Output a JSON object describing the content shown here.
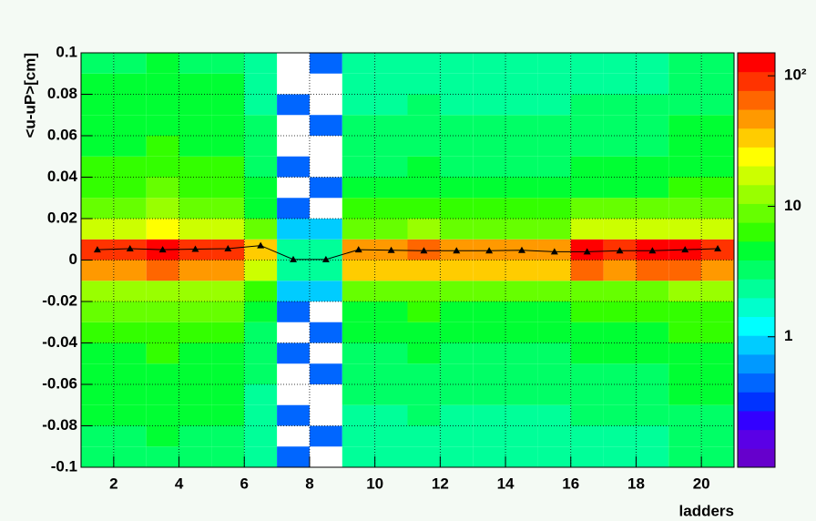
{
  "chart_data": {
    "type": "heatmap",
    "xlabel": "ladders",
    "ylabel": "<u-uP>[cm]",
    "xlim": [
      1,
      21
    ],
    "xticks": [
      2,
      4,
      6,
      8,
      10,
      12,
      14,
      16,
      18,
      20
    ],
    "ylim": [
      -0.1,
      0.1
    ],
    "yticks": [
      -0.1,
      -0.08,
      -0.06,
      -0.04,
      -0.02,
      0,
      0.02,
      0.04,
      0.06,
      0.08,
      0.1
    ],
    "grid": true,
    "xbins": [
      1,
      2,
      3,
      4,
      5,
      6,
      7,
      8,
      9,
      10,
      11,
      12,
      13,
      14,
      15,
      16,
      17,
      18,
      19,
      20,
      21
    ],
    "ybins": [
      -0.1,
      -0.09,
      -0.08,
      -0.07,
      -0.06,
      -0.05,
      -0.04,
      -0.03,
      -0.02,
      -0.01,
      0,
      0.01,
      0.02,
      0.03,
      0.04,
      0.05,
      0.06,
      0.07,
      0.08,
      0.09,
      0.1
    ],
    "z": [
      [
        3,
        3,
        4,
        4,
        5,
        5,
        6,
        8,
        12,
        50,
        100,
        20,
        10,
        7,
        6,
        5,
        5,
        4,
        4,
        3
      ],
      [
        3,
        3,
        4,
        4,
        5,
        5,
        6,
        8,
        12,
        50,
        100,
        20,
        10,
        7,
        6,
        5,
        5,
        4,
        4,
        3
      ],
      [
        3,
        4,
        4,
        5,
        5,
        6,
        7,
        9,
        14,
        60,
        120,
        22,
        11,
        8,
        7,
        6,
        5,
        5,
        4,
        4
      ],
      [
        3,
        3,
        4,
        4,
        5,
        5,
        6,
        8,
        12,
        50,
        100,
        20,
        10,
        7,
        6,
        5,
        5,
        4,
        4,
        3
      ],
      [
        3,
        3,
        4,
        4,
        5,
        5,
        6,
        8,
        12,
        45,
        90,
        18,
        9,
        7,
        6,
        5,
        5,
        4,
        4,
        3
      ],
      [
        2,
        2,
        2,
        2,
        3,
        3,
        3,
        4,
        6,
        15,
        30,
        8,
        5,
        4,
        3,
        3,
        3,
        2,
        2,
        2
      ],
      [
        0.5,
        null,
        0.5,
        null,
        null,
        0.5,
        null,
        0.5,
        1,
        2,
        2,
        1,
        0.5,
        null,
        0.5,
        null,
        null,
        0.5,
        null,
        null
      ],
      [
        null,
        0.5,
        null,
        null,
        0.5,
        null,
        0.5,
        null,
        1,
        2,
        2,
        1,
        null,
        0.5,
        null,
        null,
        0.5,
        null,
        null,
        0.5
      ],
      [
        2,
        2,
        2,
        3,
        3,
        3,
        4,
        5,
        8,
        30,
        50,
        10,
        6,
        4,
        3,
        3,
        3,
        2,
        2,
        2
      ],
      [
        2,
        2,
        2,
        3,
        3,
        3,
        4,
        5,
        8,
        30,
        50,
        10,
        6,
        4,
        3,
        3,
        3,
        2,
        2,
        2
      ],
      [
        2,
        2,
        3,
        3,
        3,
        4,
        4,
        6,
        9,
        35,
        60,
        12,
        6,
        5,
        4,
        3,
        3,
        3,
        2,
        2
      ],
      [
        2,
        2,
        2,
        3,
        3,
        3,
        4,
        5,
        8,
        30,
        55,
        10,
        6,
        4,
        3,
        3,
        3,
        2,
        2,
        2
      ],
      [
        2,
        2,
        2,
        3,
        3,
        3,
        4,
        5,
        8,
        30,
        50,
        10,
        6,
        4,
        3,
        3,
        3,
        2,
        2,
        2
      ],
      [
        2,
        2,
        2,
        3,
        3,
        3,
        4,
        5,
        8,
        30,
        55,
        10,
        6,
        4,
        3,
        3,
        3,
        2,
        2,
        2
      ],
      [
        2,
        2,
        2,
        3,
        3,
        3,
        4,
        5,
        8,
        30,
        50,
        10,
        6,
        4,
        3,
        3,
        3,
        2,
        2,
        2
      ],
      [
        2,
        2,
        3,
        3,
        3,
        4,
        5,
        6,
        10,
        60,
        120,
        15,
        8,
        5,
        4,
        3,
        3,
        3,
        2,
        2
      ],
      [
        2,
        2,
        3,
        3,
        3,
        4,
        5,
        6,
        10,
        50,
        100,
        15,
        8,
        5,
        4,
        3,
        3,
        3,
        2,
        2
      ],
      [
        2,
        2,
        3,
        3,
        3,
        4,
        5,
        6,
        10,
        60,
        120,
        15,
        8,
        5,
        4,
        3,
        3,
        3,
        2,
        2
      ],
      [
        3,
        3,
        3,
        4,
        4,
        5,
        6,
        7,
        11,
        60,
        110,
        16,
        9,
        6,
        5,
        4,
        4,
        3,
        3,
        3
      ],
      [
        3,
        3,
        3,
        4,
        4,
        5,
        6,
        7,
        11,
        50,
        100,
        16,
        9,
        6,
        5,
        4,
        4,
        3,
        3,
        3
      ]
    ],
    "zlim": [
      0.1,
      150
    ],
    "zscale": "log",
    "zticks": [
      1,
      10,
      {
        "value": 100,
        "label": "10²"
      }
    ],
    "palette": [
      "#6600cc",
      "#5a00e6",
      "#3300ff",
      "#0033ff",
      "#0066ff",
      "#0099ff",
      "#00ccff",
      "#00ffff",
      "#00ffcc",
      "#00ff99",
      "#00ff66",
      "#00ff33",
      "#33ff00",
      "#66ff00",
      "#99ff00",
      "#ccff00",
      "#ffff00",
      "#ffcc00",
      "#ff9900",
      "#ff6600",
      "#ff3300",
      "#ff0000"
    ],
    "profile": {
      "color": "#000000",
      "x": [
        1.5,
        2.5,
        3.5,
        4.5,
        5.5,
        6.5,
        7.5,
        8.5,
        9.5,
        10.5,
        11.5,
        12.5,
        13.5,
        14.5,
        15.5,
        16.5,
        17.5,
        18.5,
        19.5,
        20.5
      ],
      "values": [
        0.005,
        0.0055,
        0.005,
        0.0053,
        0.0055,
        0.007,
        0.0003,
        0.0003,
        0.005,
        0.0047,
        0.0045,
        0.0045,
        0.0045,
        0.0047,
        0.004,
        0.004,
        0.0045,
        0.0045,
        0.005,
        0.0055
      ]
    }
  }
}
